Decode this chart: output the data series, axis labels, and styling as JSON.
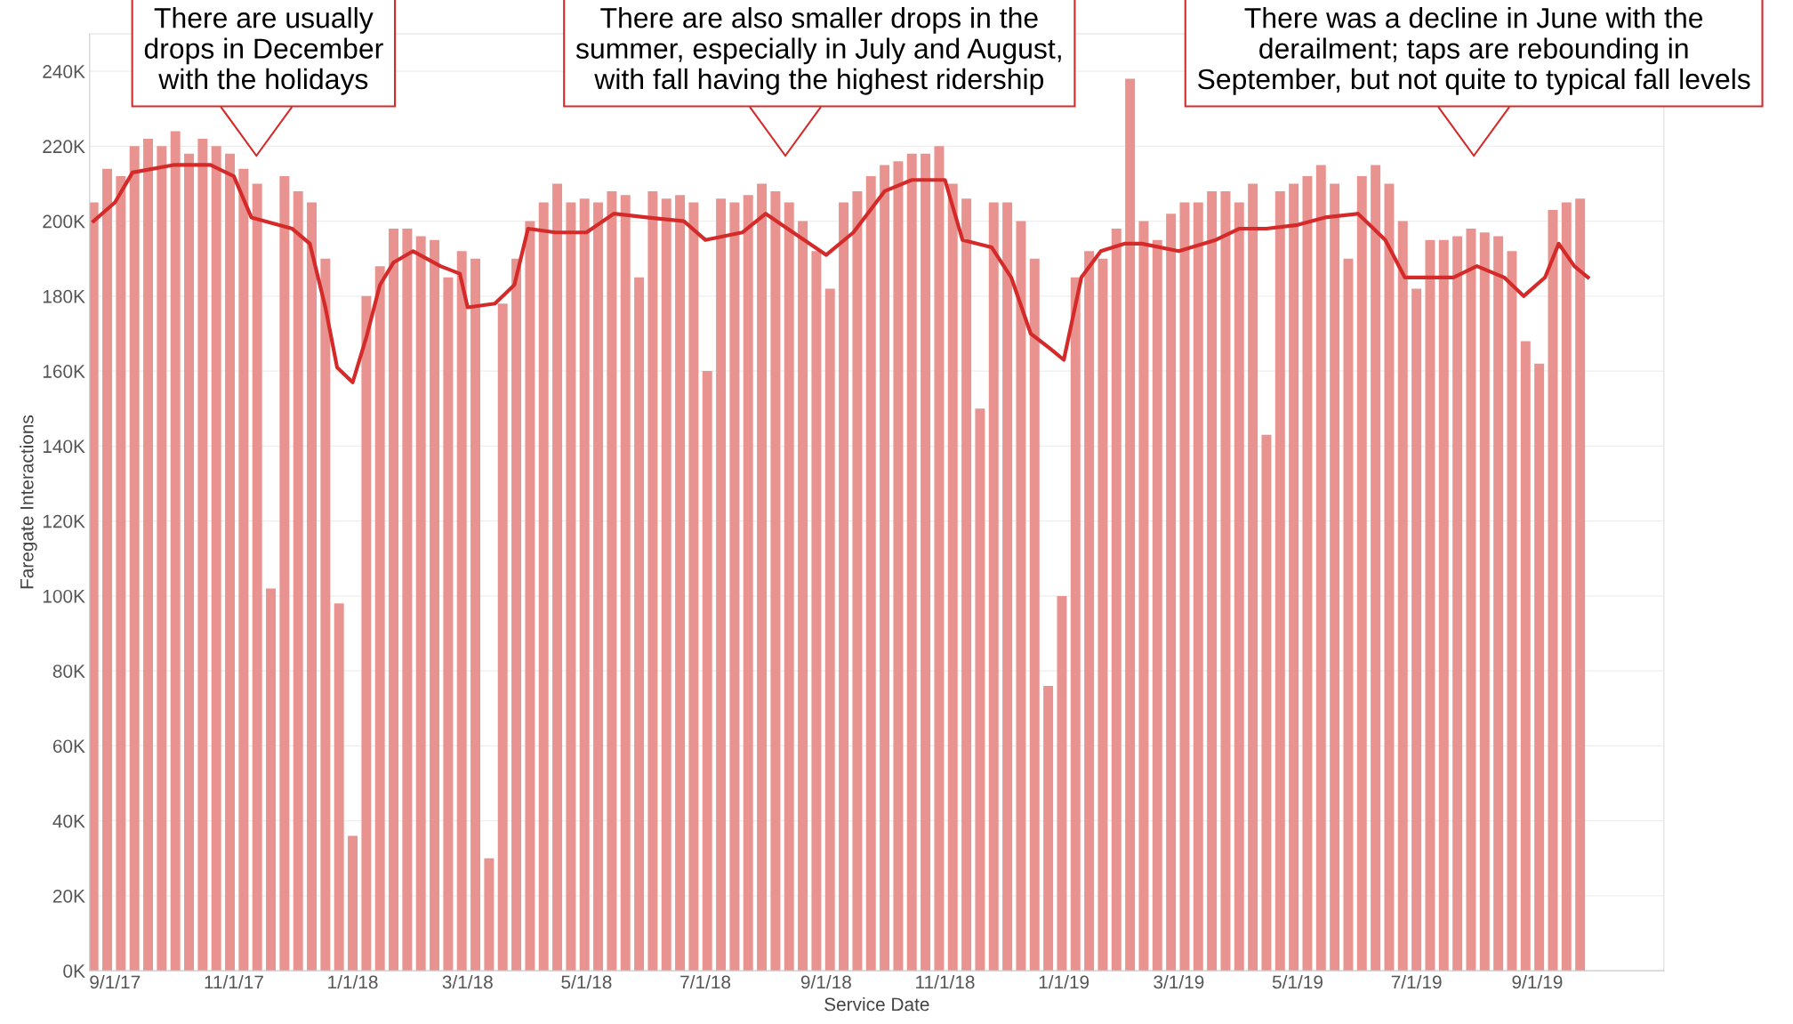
{
  "chart_data": {
    "type": "bar",
    "xlabel": "Service Date",
    "ylabel": "Faregate Interactions",
    "x": [
      "2017-08-21",
      "2017-08-28",
      "2017-09-04",
      "2017-09-11",
      "2017-09-18",
      "2017-09-25",
      "2017-10-02",
      "2017-10-09",
      "2017-10-16",
      "2017-10-23",
      "2017-10-30",
      "2017-11-06",
      "2017-11-13",
      "2017-11-20",
      "2017-11-27",
      "2017-12-04",
      "2017-12-11",
      "2017-12-18",
      "2017-12-25",
      "2018-01-01",
      "2018-01-08",
      "2018-01-15",
      "2018-01-22",
      "2018-01-29",
      "2018-02-05",
      "2018-02-12",
      "2018-02-19",
      "2018-02-26",
      "2018-03-05",
      "2018-03-12",
      "2018-03-19",
      "2018-03-26",
      "2018-04-02",
      "2018-04-09",
      "2018-04-16",
      "2018-04-23",
      "2018-04-30",
      "2018-05-07",
      "2018-05-14",
      "2018-05-21",
      "2018-05-28",
      "2018-06-04",
      "2018-06-11",
      "2018-06-18",
      "2018-06-25",
      "2018-07-02",
      "2018-07-09",
      "2018-07-16",
      "2018-07-23",
      "2018-07-30",
      "2018-08-06",
      "2018-08-13",
      "2018-08-20",
      "2018-08-27",
      "2018-09-03",
      "2018-09-10",
      "2018-09-17",
      "2018-09-24",
      "2018-10-01",
      "2018-10-08",
      "2018-10-15",
      "2018-10-22",
      "2018-10-29",
      "2018-11-05",
      "2018-11-12",
      "2018-11-19",
      "2018-11-26",
      "2018-12-03",
      "2018-12-10",
      "2018-12-17",
      "2018-12-24",
      "2018-12-31",
      "2019-01-07",
      "2019-01-14",
      "2019-01-21",
      "2019-01-28",
      "2019-02-04",
      "2019-02-11",
      "2019-02-18",
      "2019-02-25",
      "2019-03-04",
      "2019-03-11",
      "2019-03-18",
      "2019-03-25",
      "2019-04-01",
      "2019-04-08",
      "2019-04-15",
      "2019-04-22",
      "2019-04-29",
      "2019-05-06",
      "2019-05-13",
      "2019-05-20",
      "2019-05-27",
      "2019-06-03",
      "2019-06-10",
      "2019-06-17",
      "2019-06-24",
      "2019-07-01",
      "2019-07-08",
      "2019-07-15",
      "2019-07-22",
      "2019-07-29",
      "2019-08-05",
      "2019-08-12",
      "2019-08-19",
      "2019-08-26",
      "2019-09-02",
      "2019-09-09",
      "2019-09-16",
      "2019-09-23"
    ],
    "series": [
      {
        "color": "#e8938f",
        "values": [
          205000,
          214000,
          212000,
          220000,
          222000,
          220000,
          224000,
          218000,
          222000,
          220000,
          218000,
          214000,
          210000,
          102000,
          212000,
          208000,
          205000,
          190000,
          98000,
          36000,
          180000,
          188000,
          198000,
          198000,
          196000,
          195000,
          185000,
          192000,
          190000,
          30000,
          178000,
          190000,
          200000,
          205000,
          210000,
          205000,
          206000,
          205000,
          208000,
          207000,
          185000,
          208000,
          206000,
          207000,
          205000,
          160000,
          206000,
          205000,
          207000,
          210000,
          208000,
          205000,
          200000,
          192000,
          182000,
          205000,
          208000,
          212000,
          215000,
          216000,
          218000,
          218000,
          220000,
          210000,
          206000,
          150000,
          205000,
          205000,
          200000,
          190000,
          76000,
          100000,
          185000,
          192000,
          190000,
          198000,
          238000,
          200000,
          195000,
          202000,
          205000,
          205000,
          208000,
          208000,
          205000,
          210000,
          143000,
          208000,
          210000,
          212000,
          215000,
          210000,
          190000,
          212000,
          215000,
          210000,
          200000,
          182000,
          195000,
          195000,
          196000,
          198000,
          197000,
          196000,
          192000,
          168000,
          162000,
          203000,
          205000,
          206000
        ]
      },
      {
        "type": "line",
        "color": "#d42a2a",
        "x": [
          "2017-08-21",
          "2017-09-01",
          "2017-09-10",
          "2017-10-01",
          "2017-10-20",
          "2017-11-01",
          "2017-11-10",
          "2017-12-01",
          "2017-12-10",
          "2017-12-18",
          "2017-12-24",
          "2018-01-01",
          "2018-01-08",
          "2018-01-15",
          "2018-01-22",
          "2018-02-01",
          "2018-02-15",
          "2018-02-25",
          "2018-03-01",
          "2018-03-15",
          "2018-03-25",
          "2018-04-01",
          "2018-04-15",
          "2018-05-01",
          "2018-05-15",
          "2018-06-01",
          "2018-06-20",
          "2018-07-01",
          "2018-07-20",
          "2018-08-01",
          "2018-08-15",
          "2018-09-01",
          "2018-09-15",
          "2018-10-01",
          "2018-10-15",
          "2018-11-01",
          "2018-11-10",
          "2018-11-25",
          "2018-12-05",
          "2018-12-15",
          "2018-12-25",
          "2019-01-01",
          "2019-01-10",
          "2019-01-20",
          "2019-02-01",
          "2019-02-10",
          "2019-03-01",
          "2019-03-20",
          "2019-04-01",
          "2019-04-15",
          "2019-05-01",
          "2019-05-15",
          "2019-06-01",
          "2019-06-15",
          "2019-06-25",
          "2019-07-01",
          "2019-07-20",
          "2019-08-01",
          "2019-08-15",
          "2019-08-25",
          "2019-09-05",
          "2019-09-12",
          "2019-09-20",
          "2019-09-27"
        ],
        "values": [
          200000,
          205000,
          213000,
          215000,
          215000,
          212000,
          201000,
          198000,
          194000,
          177000,
          161000,
          157000,
          169000,
          183000,
          189000,
          192000,
          188000,
          186000,
          177000,
          178000,
          183000,
          198000,
          197000,
          197000,
          202000,
          201000,
          200000,
          195000,
          197000,
          202000,
          197000,
          191000,
          197000,
          208000,
          211000,
          211000,
          195000,
          193000,
          185000,
          170000,
          166000,
          163000,
          185000,
          192000,
          194000,
          194000,
          192000,
          195000,
          198000,
          198000,
          199000,
          201000,
          202000,
          195000,
          185000,
          185000,
          185000,
          188000,
          185000,
          180000,
          185000,
          194000,
          188000,
          185000
        ]
      }
    ],
    "xlim": [
      "2017-08-19",
      "2019-11-05"
    ],
    "xticks": [
      {
        "value": "2017-09-01",
        "label": "9/1/17"
      },
      {
        "value": "2017-11-01",
        "label": "11/1/17"
      },
      {
        "value": "2018-01-01",
        "label": "1/1/18"
      },
      {
        "value": "2018-03-01",
        "label": "3/1/18"
      },
      {
        "value": "2018-05-01",
        "label": "5/1/18"
      },
      {
        "value": "2018-07-01",
        "label": "7/1/18"
      },
      {
        "value": "2018-09-01",
        "label": "9/1/18"
      },
      {
        "value": "2018-11-01",
        "label": "11/1/18"
      },
      {
        "value": "2019-01-01",
        "label": "1/1/19"
      },
      {
        "value": "2019-03-01",
        "label": "3/1/19"
      },
      {
        "value": "2019-05-01",
        "label": "5/1/19"
      },
      {
        "value": "2019-07-01",
        "label": "7/1/19"
      },
      {
        "value": "2019-09-01",
        "label": "9/1/19"
      }
    ],
    "ylim": [
      0,
      250000
    ],
    "yticks": [
      {
        "value": 0,
        "label": "0K"
      },
      {
        "value": 20000,
        "label": "20K"
      },
      {
        "value": 40000,
        "label": "40K"
      },
      {
        "value": 60000,
        "label": "60K"
      },
      {
        "value": 80000,
        "label": "80K"
      },
      {
        "value": 100000,
        "label": "100K"
      },
      {
        "value": 120000,
        "label": "120K"
      },
      {
        "value": 140000,
        "label": "140K"
      },
      {
        "value": 160000,
        "label": "160K"
      },
      {
        "value": 180000,
        "label": "180K"
      },
      {
        "value": 200000,
        "label": "200K"
      },
      {
        "value": 220000,
        "label": "220K"
      },
      {
        "value": 240000,
        "label": "240K"
      }
    ],
    "grid": "y",
    "annotations": [
      "There are usually\ndrops in December\nwith the holidays",
      "There are also smaller drops in the\nsummer, especially in July and August,\nwith fall having the highest ridership",
      "There was a decline in June with the\nderailment; taps are rebounding in\nSeptember, but not quite to typical fall levels"
    ]
  }
}
